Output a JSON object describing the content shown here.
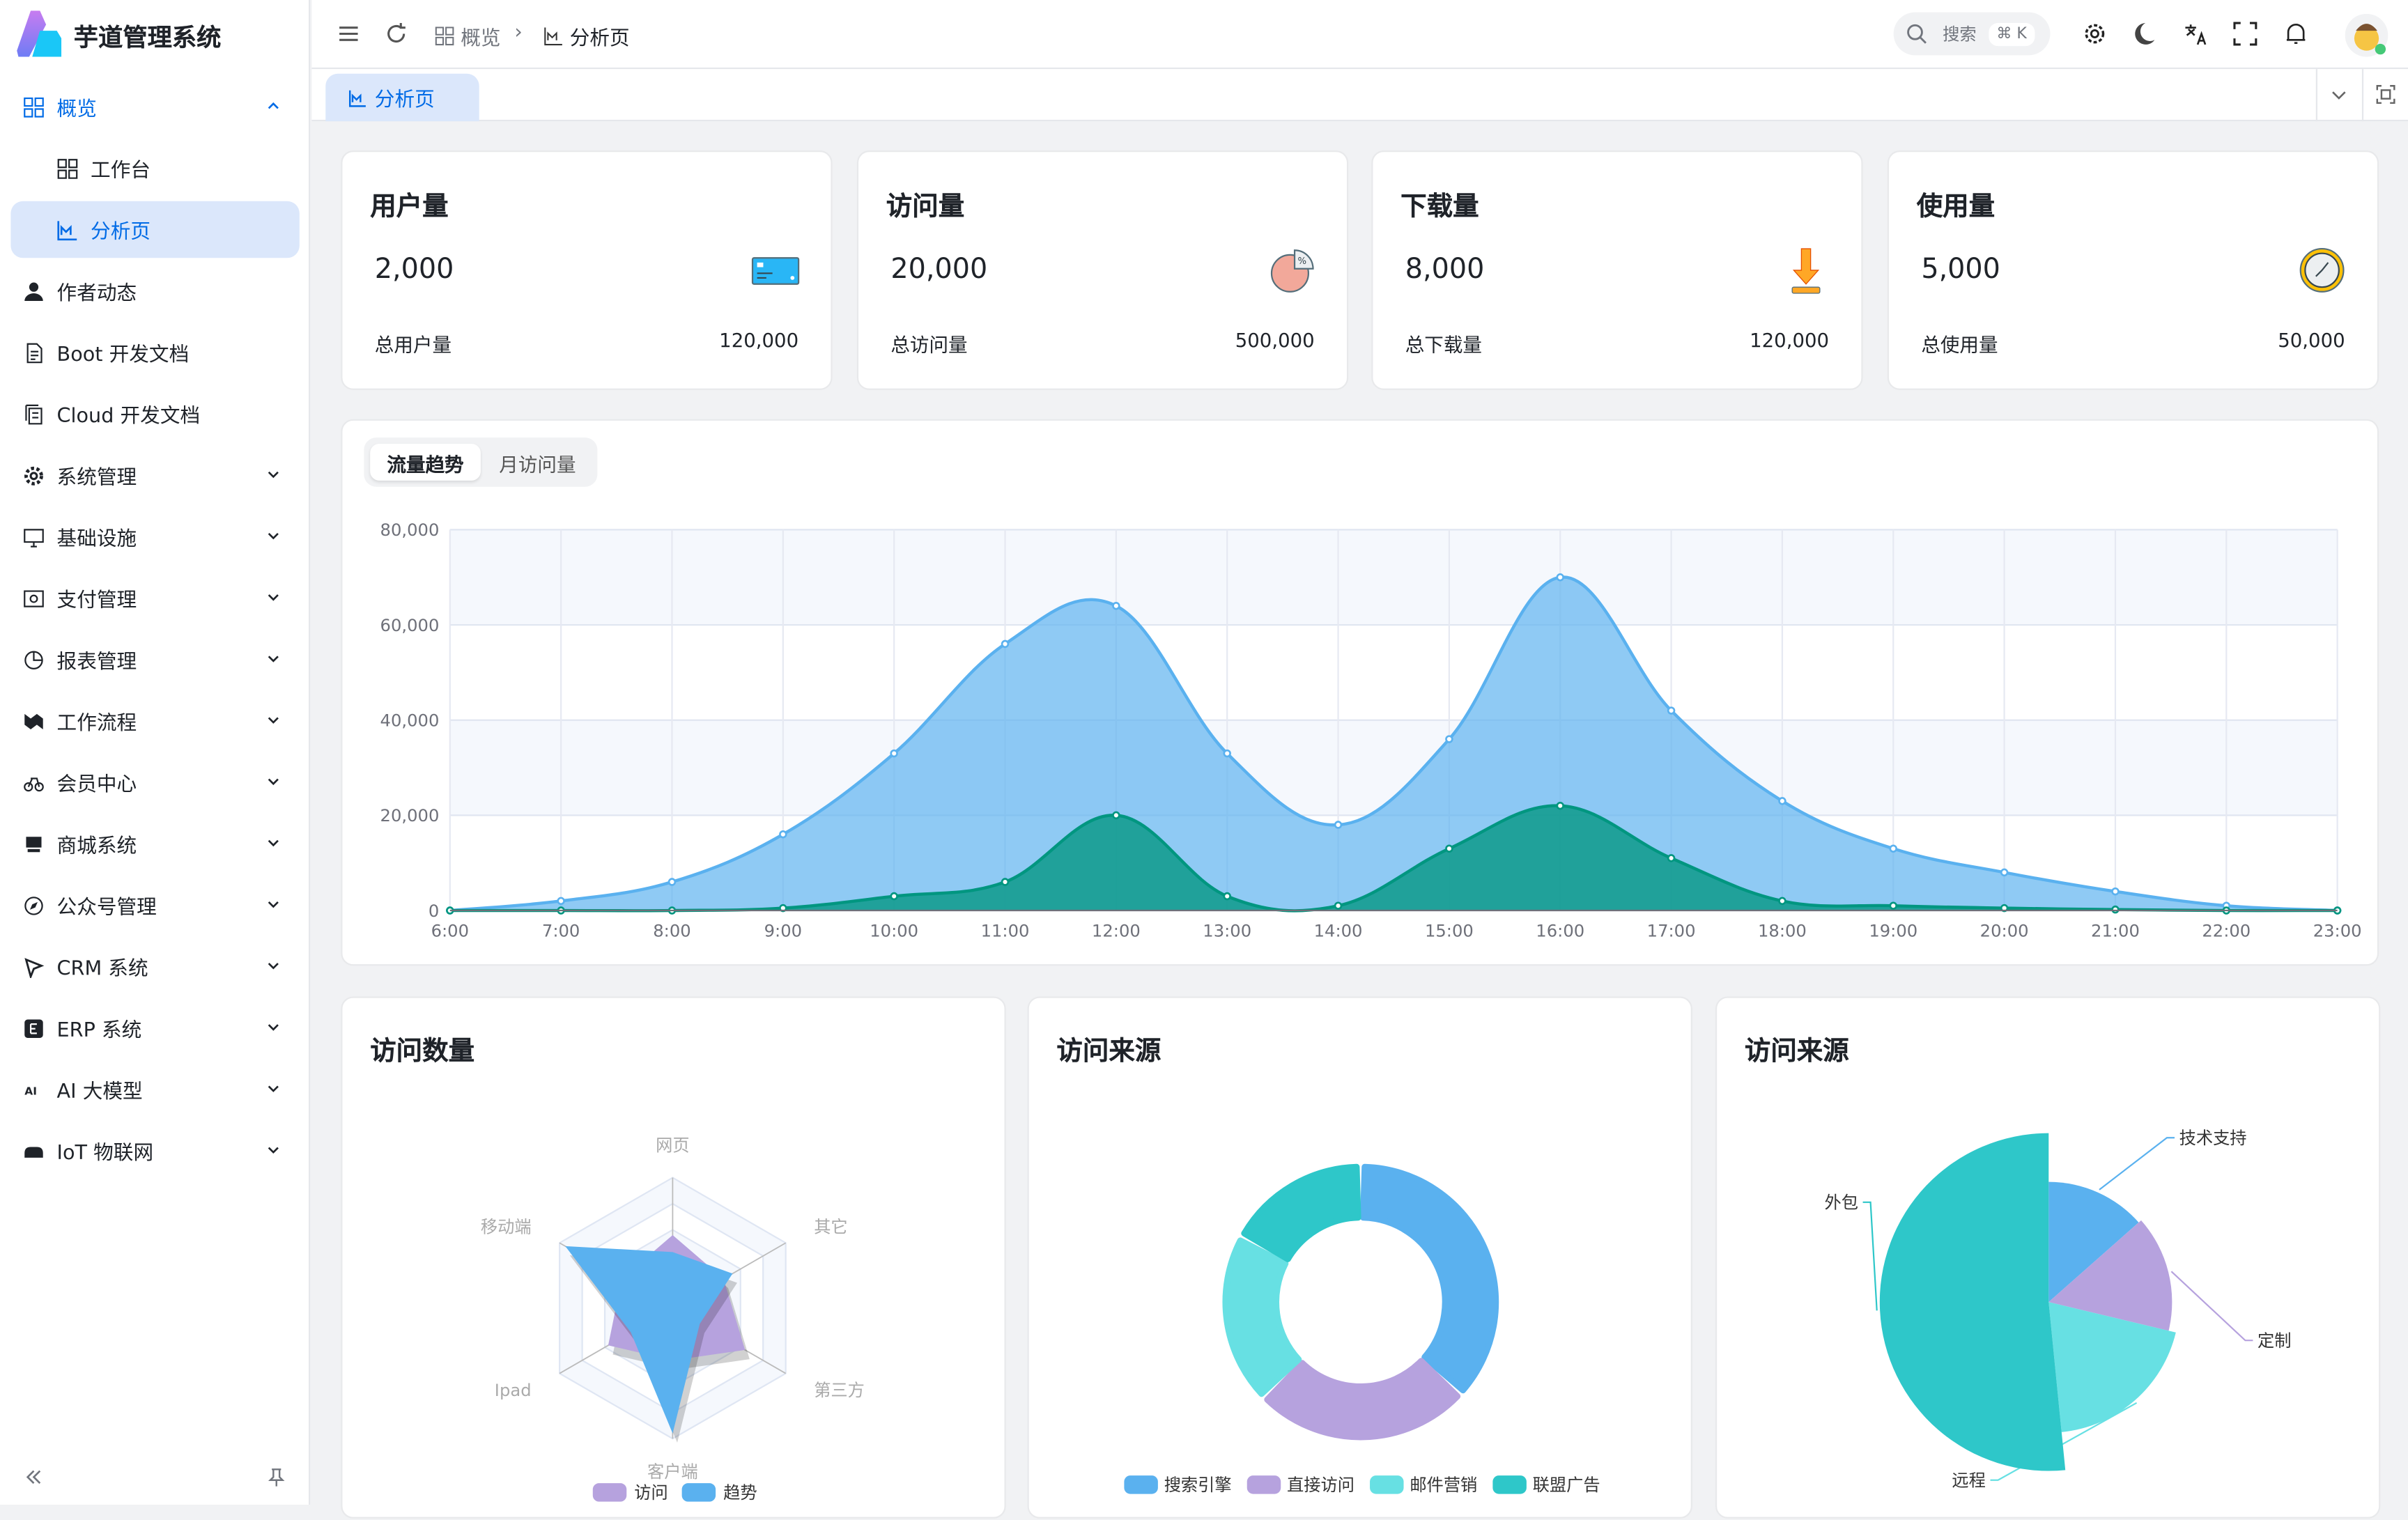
{
  "app": {
    "title": "芋道管理系统"
  },
  "sidebar": {
    "items": [
      {
        "label": "概览",
        "icon": "grid-icon",
        "state": "open",
        "chevron": "up"
      },
      {
        "label": "工作台",
        "icon": "grid-icon",
        "sub": true
      },
      {
        "label": "分析页",
        "icon": "chart-icon",
        "sub": true,
        "state": "selected"
      },
      {
        "label": "作者动态",
        "icon": "user-icon"
      },
      {
        "label": "Boot 开发文档",
        "icon": "doc-icon"
      },
      {
        "label": "Cloud 开发文档",
        "icon": "docs-icon"
      },
      {
        "label": "系统管理",
        "icon": "gear-icon",
        "chevron": "down"
      },
      {
        "label": "基础设施",
        "icon": "monitor-icon",
        "chevron": "down"
      },
      {
        "label": "支付管理",
        "icon": "pay-icon",
        "chevron": "down"
      },
      {
        "label": "报表管理",
        "icon": "pie-icon",
        "chevron": "down"
      },
      {
        "label": "工作流程",
        "icon": "flow-icon",
        "chevron": "down"
      },
      {
        "label": "会员中心",
        "icon": "bike-icon",
        "chevron": "down"
      },
      {
        "label": "商城系统",
        "icon": "shop-icon",
        "chevron": "down"
      },
      {
        "label": "公众号管理",
        "icon": "compass-icon",
        "chevron": "down"
      },
      {
        "label": "CRM 系统",
        "icon": "crm-icon",
        "chevron": "down"
      },
      {
        "label": "ERP 系统",
        "icon": "erp-icon",
        "chevron": "down"
      },
      {
        "label": "AI 大模型",
        "icon": "ai-icon",
        "chevron": "down"
      },
      {
        "label": "IoT 物联网",
        "icon": "iot-icon",
        "chevron": "down"
      }
    ]
  },
  "header": {
    "breadcrumb": [
      "概览",
      "分析页"
    ],
    "search_placeholder": "搜索",
    "search_shortcut": "⌘ K"
  },
  "tabs": [
    {
      "label": "分析页",
      "active": true
    }
  ],
  "stats": [
    {
      "title": "用户量",
      "value": "2,000",
      "footer": "总用户量",
      "total": "120,000",
      "icon": "credit-card-icon"
    },
    {
      "title": "访问量",
      "value": "20,000",
      "footer": "总访问量",
      "total": "500,000",
      "icon": "pie-chart-icon"
    },
    {
      "title": "下载量",
      "value": "8,000",
      "footer": "总下载量",
      "total": "120,000",
      "icon": "download-icon"
    },
    {
      "title": "使用量",
      "value": "5,000",
      "footer": "总使用量",
      "total": "50,000",
      "icon": "clock-icon"
    }
  ],
  "trend": {
    "tabs": [
      "流量趋势",
      "月访问量"
    ],
    "active_tab": 0
  },
  "panels": {
    "radar_title": "访问数量",
    "donut_title": "访问来源",
    "rose_title": "访问来源"
  },
  "colors": {
    "primary": "#006be6",
    "blue": "#5ab1ef",
    "purple": "#b6a2de",
    "cyan": "#67e0e3",
    "teal": "#2ec7c9",
    "green": "#019680"
  },
  "chart_data": [
    {
      "type": "area",
      "x": [
        "6:00",
        "7:00",
        "8:00",
        "9:00",
        "10:00",
        "11:00",
        "12:00",
        "13:00",
        "14:00",
        "15:00",
        "16:00",
        "17:00",
        "18:00",
        "19:00",
        "20:00",
        "21:00",
        "22:00",
        "23:00"
      ],
      "ylim": [
        0,
        80000
      ],
      "yticks": [
        "0",
        "20,000",
        "40,000",
        "60,000",
        "80,000"
      ],
      "grid": true,
      "series": [
        {
          "values": [
            0,
            2000,
            6000,
            16000,
            33000,
            56000,
            64000,
            33000,
            18000,
            36000,
            70000,
            42000,
            23000,
            13000,
            8000,
            4000,
            1000,
            0
          ],
          "color": "#5ab1ef"
        },
        {
          "values": [
            0,
            0,
            0,
            500,
            3000,
            6000,
            20000,
            3000,
            1000,
            13000,
            22000,
            11000,
            2000,
            1000,
            500,
            200,
            0,
            0
          ],
          "color": "#019680"
        }
      ]
    },
    {
      "type": "radar",
      "indicators": [
        "网页",
        "移动端",
        "Ipad",
        "客户端",
        "第三方",
        "其它"
      ],
      "max": 100,
      "series": [
        {
          "name": "访问",
          "values": [
            56,
            45,
            57,
            40,
            64,
            45
          ],
          "color": "#b6a2de"
        },
        {
          "name": "趋势",
          "values": [
            43,
            95,
            37,
            96,
            24,
            53
          ],
          "color": "#5ab1ef"
        }
      ],
      "legend": "bottom"
    },
    {
      "type": "pie",
      "variant": "donut",
      "categories": [
        "搜索引擎",
        "直接访问",
        "邮件营销",
        "联盟广告"
      ],
      "values": [
        1048,
        735,
        580,
        484
      ],
      "colors": [
        "#5ab1ef",
        "#b6a2de",
        "#67e0e3",
        "#2ec7c9"
      ],
      "legend": "bottom"
    },
    {
      "type": "pie",
      "variant": "rose",
      "categories": [
        "技术支持",
        "定制",
        "远程",
        "外包"
      ],
      "values": [
        274,
        310,
        400,
        1048
      ],
      "colors": [
        "#5ab1ef",
        "#b6a2de",
        "#67e0e3",
        "#2ec7c9"
      ]
    }
  ]
}
